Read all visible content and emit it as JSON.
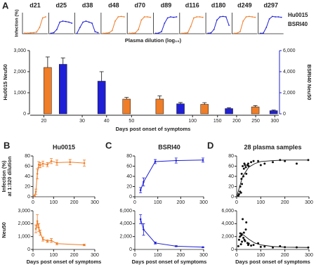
{
  "chart_data": [
    {
      "type": "small-multiples",
      "panel": "A",
      "ylabel": "Infection (%)",
      "xlabel": "Plasma dilution (log₁₀)",
      "ylim": [
        0,
        100
      ],
      "legend": [
        {
          "name": "Hu0015",
          "color": "#f07d28"
        },
        {
          "name": "BSRI40",
          "color": "#1f1fd6"
        }
      ],
      "panels": [
        {
          "label": "d21",
          "color": "#f07d28",
          "values": [
            3,
            3,
            4,
            5,
            8,
            30,
            75,
            80
          ]
        },
        {
          "label": "d25",
          "color": "#1f1fd6",
          "values": [
            2,
            5,
            20,
            55,
            60,
            58,
            55,
            50
          ]
        },
        {
          "label": "d38",
          "color": "#1f1fd6",
          "values": [
            2,
            30,
            55,
            60,
            55,
            50,
            10,
            5
          ]
        },
        {
          "label": "d48",
          "color": "#f07d28",
          "values": [
            2,
            3,
            5,
            15,
            60,
            80,
            82,
            80
          ]
        },
        {
          "label": "d70",
          "color": "#f07d28",
          "values": [
            2,
            3,
            4,
            20,
            65,
            80,
            80,
            78
          ]
        },
        {
          "label": "d89",
          "color": "#1f1fd6",
          "values": [
            2,
            3,
            10,
            50,
            75,
            80,
            78,
            80
          ]
        },
        {
          "label": "d116",
          "color": "#f07d28",
          "values": [
            2,
            3,
            5,
            35,
            75,
            80,
            80,
            78
          ]
        },
        {
          "label": "d180",
          "color": "#1f1fd6",
          "values": [
            2,
            4,
            20,
            65,
            80,
            82,
            80,
            40
          ]
        },
        {
          "label": "d249",
          "color": "#f07d28",
          "values": [
            2,
            3,
            10,
            60,
            80,
            82,
            80,
            78
          ]
        },
        {
          "label": "d297",
          "color": "#1f1fd6",
          "values": [
            2,
            3,
            30,
            70,
            82,
            80,
            80,
            78
          ]
        }
      ]
    },
    {
      "type": "bar",
      "ylabel": "Hu0015 Neu50",
      "y2label": "BSRI40 Neu50",
      "xlabel": "Days post onset of symptoms",
      "ylim": [
        0,
        3000
      ],
      "yticks": [
        0,
        {
          "value": 1000,
          "label": "1,000"
        },
        {
          "value": 2000,
          "label": "2,000"
        },
        {
          "value": 3000,
          "label": "3,000"
        }
      ],
      "y2lim": [
        0,
        6000
      ],
      "y2ticks": [
        0,
        {
          "value": 2000,
          "label": "2,000"
        },
        {
          "value": 4000,
          "label": "4,000"
        },
        {
          "value": 6000,
          "label": "6,000"
        }
      ],
      "xsegments": [
        [
          17,
          32
        ],
        [
          35,
          53
        ],
        [
          55,
          105
        ],
        [
          110,
          305
        ]
      ],
      "xticks": [
        20,
        30,
        40,
        50,
        100,
        150,
        200,
        250,
        300
      ],
      "series": [
        {
          "color": "#f07d28",
          "x": [
            21,
            48,
            70,
            116,
            249
          ],
          "values": [
            2200,
            700,
            700,
            450,
            330
          ],
          "errors": [
            500,
            80,
            150,
            80,
            60
          ]
        },
        {
          "color": "#1f1fd6",
          "axis": "y2",
          "x": [
            25,
            38,
            89,
            180,
            297
          ],
          "values": [
            4700,
            3100,
            950,
            500,
            300
          ],
          "errors": [
            600,
            900,
            120,
            80,
            60
          ]
        }
      ]
    },
    {
      "type": "line",
      "panel": "B",
      "title": "Hu0015",
      "title_color": "#f07d28",
      "ylabel": [
        "Infection (%)",
        "at 1:320 dilution"
      ],
      "xlim": [
        0,
        300
      ],
      "xticks": [
        0,
        100,
        200,
        300
      ],
      "ylim": [
        0,
        80
      ],
      "yticks": [
        0,
        20,
        40,
        60,
        80
      ],
      "series": [
        {
          "color": "#f07d28",
          "x": [
            7,
            14,
            21,
            28,
            35,
            48,
            70,
            89,
            116,
            180,
            249
          ],
          "values": [
            2,
            10,
            45,
            63,
            62,
            65,
            63,
            70,
            67,
            68,
            66
          ],
          "errors": [
            1,
            5,
            10,
            6,
            5,
            5,
            4,
            5,
            5,
            5,
            6
          ]
        }
      ]
    },
    {
      "type": "line",
      "ylabel": [
        "Neu50"
      ],
      "xlabel": "Days post onset of symptoms",
      "xlim": [
        0,
        300
      ],
      "xticks": [
        0,
        100,
        200,
        300
      ],
      "ylim": [
        0,
        3000
      ],
      "yticks": [
        0,
        {
          "value": 1000,
          "label": "1,000"
        },
        {
          "value": 2000,
          "label": "2,000"
        },
        {
          "value": 3000,
          "label": "3,000"
        }
      ],
      "series": [
        {
          "color": "#f07d28",
          "x": [
            14,
            21,
            28,
            35,
            48,
            70,
            89,
            116,
            249
          ],
          "values": [
            1600,
            2200,
            1700,
            1300,
            800,
            650,
            700,
            450,
            350
          ],
          "errors": [
            300,
            500,
            300,
            200,
            150,
            100,
            150,
            80,
            60
          ]
        }
      ]
    },
    {
      "type": "line",
      "panel": "C",
      "title": "BSRI40",
      "title_color": "#1f1fd6",
      "xlim": [
        0,
        300
      ],
      "xticks": [
        0,
        100,
        200,
        300
      ],
      "ylim": [
        0,
        80
      ],
      "yticks": [
        0,
        20,
        40,
        60,
        80
      ],
      "series": [
        {
          "color": "#1f1fd6",
          "x": [
            25,
            38,
            89,
            180,
            297
          ],
          "values": [
            13,
            29,
            69,
            71,
            72
          ],
          "errors": [
            5,
            8,
            4,
            5,
            4
          ]
        }
      ]
    },
    {
      "type": "line",
      "xlabel": "Days post onset of symptoms",
      "xlim": [
        0,
        300
      ],
      "xticks": [
        0,
        100,
        200,
        300
      ],
      "ylim": [
        0,
        6000
      ],
      "yticks": [
        0,
        {
          "value": 2000,
          "label": "2,000"
        },
        {
          "value": 4000,
          "label": "4,000"
        },
        {
          "value": 6000,
          "label": "6,000"
        }
      ],
      "series": [
        {
          "color": "#1f1fd6",
          "x": [
            25,
            38,
            89,
            180,
            297
          ],
          "values": [
            4700,
            3100,
            1000,
            500,
            350
          ],
          "errors": [
            700,
            900,
            150,
            80,
            60
          ]
        }
      ]
    },
    {
      "type": "scatter",
      "panel": "D",
      "title": "28 plasma samples",
      "title_color": "#111111",
      "xlim": [
        0,
        300
      ],
      "xticks": [
        0,
        100,
        200,
        300
      ],
      "ylim": [
        0,
        80
      ],
      "yticks": [
        0,
        20,
        40,
        60,
        80
      ],
      "series": [
        {
          "color": "#111111",
          "x": [
            7,
            10,
            14,
            15,
            18,
            20,
            21,
            22,
            25,
            28,
            30,
            32,
            35,
            38,
            40,
            45,
            48,
            50,
            60,
            70,
            89,
            100,
            116,
            150,
            180,
            200,
            249,
            297
          ],
          "values": [
            2,
            5,
            10,
            20,
            8,
            35,
            45,
            25,
            60,
            40,
            55,
            65,
            62,
            58,
            45,
            62,
            65,
            60,
            68,
            70,
            70,
            62,
            65,
            68,
            72,
            70,
            65,
            72
          ]
        }
      ],
      "fit": {
        "color": "#111111",
        "x": [
          0,
          25,
          50,
          75,
          100,
          150,
          200,
          300
        ],
        "values": [
          0,
          40,
          58,
          65,
          69,
          71,
          72,
          72
        ]
      }
    },
    {
      "type": "scatter",
      "xlabel": "Days post onset of symptoms",
      "xlim": [
        0,
        300
      ],
      "xticks": [
        0,
        100,
        200,
        300
      ],
      "ylim": [
        0,
        6000
      ],
      "yticks": [
        0,
        {
          "value": 2000,
          "label": "2,000"
        },
        {
          "value": 4000,
          "label": "4,000"
        },
        {
          "value": 6000,
          "label": "6,000"
        }
      ],
      "series": [
        {
          "color": "#111111",
          "x": [
            7,
            10,
            14,
            15,
            18,
            20,
            21,
            22,
            25,
            28,
            30,
            32,
            35,
            38,
            40,
            45,
            48,
            50,
            60,
            70,
            89,
            100,
            116,
            150,
            180,
            200,
            249,
            297
          ],
          "values": [
            500,
            1500,
            2000,
            2500,
            800,
            2200,
            2400,
            1200,
            4700,
            1800,
            2600,
            1500,
            1300,
            3100,
            4200,
            1000,
            700,
            900,
            600,
            700,
            950,
            400,
            450,
            300,
            500,
            350,
            330,
            300
          ]
        }
      ],
      "fit": {
        "color": "#111111",
        "x": [
          10,
          20,
          30,
          50,
          75,
          100,
          150,
          200,
          300
        ],
        "values": [
          1800,
          2400,
          2200,
          1600,
          1000,
          700,
          450,
          350,
          300
        ]
      }
    }
  ]
}
